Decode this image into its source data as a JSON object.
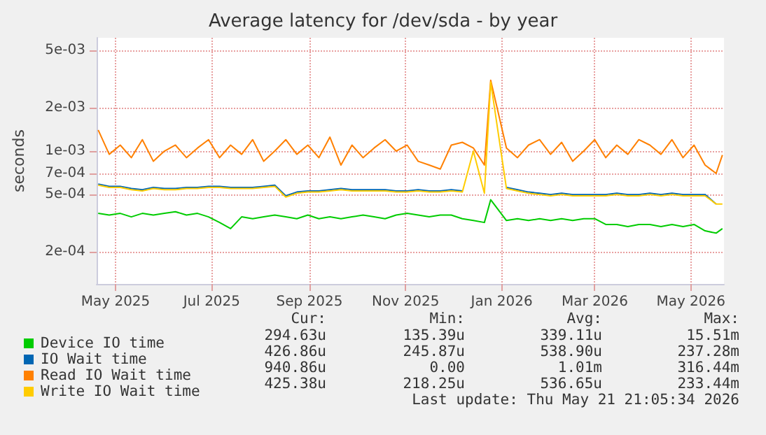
{
  "chart_data": {
    "type": "line",
    "title": "Average latency for /dev/sda - by year",
    "ylabel": "seconds",
    "log": "y",
    "grid": true,
    "legend": "bottom",
    "marker": "none",
    "x": [
      "2025-04-20",
      "2025-04-27",
      "2025-05-04",
      "2025-05-11",
      "2025-05-18",
      "2025-05-25",
      "2025-06-01",
      "2025-06-08",
      "2025-06-15",
      "2025-06-22",
      "2025-06-29",
      "2025-07-06",
      "2025-07-13",
      "2025-07-20",
      "2025-07-27",
      "2025-08-03",
      "2025-08-10",
      "2025-08-17",
      "2025-08-24",
      "2025-08-31",
      "2025-09-07",
      "2025-09-14",
      "2025-09-21",
      "2025-09-28",
      "2025-10-05",
      "2025-10-12",
      "2025-10-19",
      "2025-10-26",
      "2025-11-02",
      "2025-11-09",
      "2025-11-16",
      "2025-11-23",
      "2025-11-30",
      "2025-12-07",
      "2025-12-14",
      "2025-12-21",
      "2025-12-25",
      "2026-01-04",
      "2026-01-11",
      "2026-01-18",
      "2026-01-25",
      "2026-02-01",
      "2026-02-08",
      "2026-02-15",
      "2026-02-22",
      "2026-03-01",
      "2026-03-08",
      "2026-03-15",
      "2026-03-22",
      "2026-03-29",
      "2026-04-05",
      "2026-04-12",
      "2026-04-19",
      "2026-04-26",
      "2026-05-03",
      "2026-05-10",
      "2026-05-17",
      "2026-05-21"
    ],
    "xlim": [
      "2025-04-19",
      "2026-05-22"
    ],
    "xticks": [
      {
        "value": "2025-05-01",
        "label": "May 2025"
      },
      {
        "value": "2025-07-01",
        "label": "Jul 2025"
      },
      {
        "value": "2025-09-01",
        "label": "Sep 2025"
      },
      {
        "value": "2025-11-01",
        "label": "Nov 2025"
      },
      {
        "value": "2026-01-01",
        "label": "Jan 2026"
      },
      {
        "value": "2026-03-01",
        "label": "Mar 2026"
      },
      {
        "value": "2026-05-01",
        "label": "May 2026"
      }
    ],
    "ylim": [
      0.00012,
      0.0061
    ],
    "yticks": [
      {
        "value": 0.0002,
        "label": "2e-04"
      },
      {
        "value": 0.0005,
        "label": "5e-04"
      },
      {
        "value": 0.0007,
        "label": "7e-04"
      },
      {
        "value": 0.001,
        "label": "1e-03"
      },
      {
        "value": 0.002,
        "label": "2e-03"
      },
      {
        "value": 0.005,
        "label": "5e-03"
      }
    ],
    "series": [
      {
        "name": "Device IO time",
        "color": "#00cc00",
        "values": [
          0.00037,
          0.00036,
          0.00037,
          0.00035,
          0.00037,
          0.00036,
          0.00037,
          0.00038,
          0.00036,
          0.00037,
          0.00035,
          0.00032,
          0.00029,
          0.00035,
          0.00034,
          0.00035,
          0.00036,
          0.00035,
          0.00034,
          0.00036,
          0.00034,
          0.00035,
          0.00034,
          0.00035,
          0.00036,
          0.00035,
          0.00034,
          0.00036,
          0.00037,
          0.00036,
          0.00035,
          0.00036,
          0.00036,
          0.00034,
          0.00033,
          0.00032,
          0.00046,
          0.00033,
          0.00034,
          0.00033,
          0.00034,
          0.00033,
          0.00034,
          0.00033,
          0.00034,
          0.00034,
          0.00031,
          0.00031,
          0.0003,
          0.00031,
          0.00031,
          0.0003,
          0.00031,
          0.0003,
          0.00031,
          0.00028,
          0.00027,
          0.00029
        ]
      },
      {
        "name": "IO Wait time",
        "color": "#0066b3",
        "values": [
          0.00059,
          0.00057,
          0.00057,
          0.00055,
          0.00054,
          0.00056,
          0.00055,
          0.00055,
          0.00056,
          0.00056,
          0.00057,
          0.00057,
          0.00056,
          0.00056,
          0.00056,
          0.00057,
          0.00058,
          0.00049,
          0.00052,
          0.00053,
          0.00053,
          0.00054,
          0.00055,
          0.00054,
          0.00054,
          0.00054,
          0.00054,
          0.00053,
          0.00053,
          0.00054,
          0.00053,
          0.00053,
          0.00054,
          0.00053,
          null,
          null,
          null,
          0.00056,
          0.00054,
          0.00052,
          0.00051,
          0.0005,
          0.00051,
          0.0005,
          0.0005,
          0.0005,
          0.0005,
          0.00051,
          0.0005,
          0.0005,
          0.00051,
          0.0005,
          0.00051,
          0.0005,
          0.0005,
          0.0005,
          0.00043,
          null
        ]
      },
      {
        "name": "Read IO Wait time",
        "color": "#ff8000",
        "values": [
          0.0014,
          0.00095,
          0.0011,
          0.0009,
          0.0012,
          0.00085,
          0.001,
          0.0011,
          0.0009,
          0.00105,
          0.0012,
          0.0009,
          0.0011,
          0.00095,
          0.0012,
          0.00085,
          0.001,
          0.0012,
          0.00095,
          0.0011,
          0.0009,
          0.00125,
          0.0008,
          0.0011,
          0.0009,
          0.00105,
          0.0012,
          0.001,
          0.0011,
          0.00085,
          0.0008,
          0.00075,
          0.0011,
          0.00115,
          0.00105,
          0.0008,
          0.0031,
          0.00105,
          0.0009,
          0.0011,
          0.0012,
          0.00095,
          0.00115,
          0.00085,
          0.001,
          0.0012,
          0.0009,
          0.0011,
          0.00095,
          0.0012,
          0.0011,
          0.00095,
          0.0012,
          0.0009,
          0.0011,
          0.0008,
          0.0007,
          0.00094
        ]
      },
      {
        "name": "Write IO Wait time",
        "color": "#ffcc00",
        "values": [
          0.00058,
          0.00056,
          0.00056,
          0.00054,
          0.00053,
          0.00055,
          0.00054,
          0.00054,
          0.00055,
          0.00055,
          0.00056,
          0.00056,
          0.00055,
          0.00055,
          0.00055,
          0.00056,
          0.00057,
          0.00048,
          0.00051,
          0.00052,
          0.00052,
          0.00053,
          0.00054,
          0.00053,
          0.00053,
          0.00053,
          0.00053,
          0.00052,
          0.00052,
          0.00053,
          0.00052,
          0.00052,
          0.00053,
          0.00052,
          0.001,
          0.00051,
          0.003,
          0.00055,
          0.00053,
          0.00051,
          0.0005,
          0.00049,
          0.0005,
          0.00049,
          0.00049,
          0.00049,
          0.00049,
          0.0005,
          0.00049,
          0.00049,
          0.0005,
          0.00049,
          0.0005,
          0.00049,
          0.00049,
          0.00049,
          0.00043,
          0.00043
        ]
      }
    ],
    "annotations": [
      "Cur:",
      "Min:",
      "Avg:",
      "Max:",
      "294.63u",
      "135.39u",
      "339.11u",
      "15.51m",
      "426.86u",
      "245.87u",
      "538.90u",
      "237.28m",
      "940.86u",
      "0.00",
      "1.01m",
      "316.44m",
      "425.38u",
      "218.25u",
      "536.65u",
      "233.44m",
      "Last update: Thu May 21 21:05:34 2026"
    ]
  }
}
